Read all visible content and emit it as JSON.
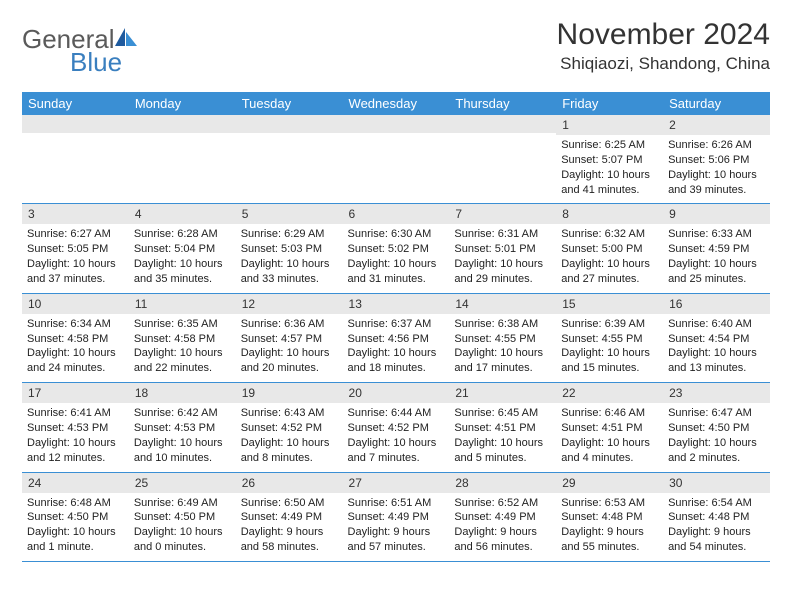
{
  "logo": {
    "text1": "General",
    "text2": "Blue"
  },
  "header": {
    "month_title": "November 2024",
    "location": "Shiqiaozi, Shandong, China"
  },
  "colors": {
    "header_bg": "#3a8fd4",
    "header_text": "#ffffff",
    "daynum_bg": "#e8e8e8",
    "logo_gray": "#5a5a5a",
    "logo_blue": "#3a7fbf",
    "border": "#3a8fd4"
  },
  "weekdays": [
    "Sunday",
    "Monday",
    "Tuesday",
    "Wednesday",
    "Thursday",
    "Friday",
    "Saturday"
  ],
  "weeks": [
    [
      null,
      null,
      null,
      null,
      null,
      {
        "n": "1",
        "sr": "Sunrise: 6:25 AM",
        "ss": "Sunset: 5:07 PM",
        "dl1": "Daylight: 10 hours",
        "dl2": "and 41 minutes."
      },
      {
        "n": "2",
        "sr": "Sunrise: 6:26 AM",
        "ss": "Sunset: 5:06 PM",
        "dl1": "Daylight: 10 hours",
        "dl2": "and 39 minutes."
      }
    ],
    [
      {
        "n": "3",
        "sr": "Sunrise: 6:27 AM",
        "ss": "Sunset: 5:05 PM",
        "dl1": "Daylight: 10 hours",
        "dl2": "and 37 minutes."
      },
      {
        "n": "4",
        "sr": "Sunrise: 6:28 AM",
        "ss": "Sunset: 5:04 PM",
        "dl1": "Daylight: 10 hours",
        "dl2": "and 35 minutes."
      },
      {
        "n": "5",
        "sr": "Sunrise: 6:29 AM",
        "ss": "Sunset: 5:03 PM",
        "dl1": "Daylight: 10 hours",
        "dl2": "and 33 minutes."
      },
      {
        "n": "6",
        "sr": "Sunrise: 6:30 AM",
        "ss": "Sunset: 5:02 PM",
        "dl1": "Daylight: 10 hours",
        "dl2": "and 31 minutes."
      },
      {
        "n": "7",
        "sr": "Sunrise: 6:31 AM",
        "ss": "Sunset: 5:01 PM",
        "dl1": "Daylight: 10 hours",
        "dl2": "and 29 minutes."
      },
      {
        "n": "8",
        "sr": "Sunrise: 6:32 AM",
        "ss": "Sunset: 5:00 PM",
        "dl1": "Daylight: 10 hours",
        "dl2": "and 27 minutes."
      },
      {
        "n": "9",
        "sr": "Sunrise: 6:33 AM",
        "ss": "Sunset: 4:59 PM",
        "dl1": "Daylight: 10 hours",
        "dl2": "and 25 minutes."
      }
    ],
    [
      {
        "n": "10",
        "sr": "Sunrise: 6:34 AM",
        "ss": "Sunset: 4:58 PM",
        "dl1": "Daylight: 10 hours",
        "dl2": "and 24 minutes."
      },
      {
        "n": "11",
        "sr": "Sunrise: 6:35 AM",
        "ss": "Sunset: 4:58 PM",
        "dl1": "Daylight: 10 hours",
        "dl2": "and 22 minutes."
      },
      {
        "n": "12",
        "sr": "Sunrise: 6:36 AM",
        "ss": "Sunset: 4:57 PM",
        "dl1": "Daylight: 10 hours",
        "dl2": "and 20 minutes."
      },
      {
        "n": "13",
        "sr": "Sunrise: 6:37 AM",
        "ss": "Sunset: 4:56 PM",
        "dl1": "Daylight: 10 hours",
        "dl2": "and 18 minutes."
      },
      {
        "n": "14",
        "sr": "Sunrise: 6:38 AM",
        "ss": "Sunset: 4:55 PM",
        "dl1": "Daylight: 10 hours",
        "dl2": "and 17 minutes."
      },
      {
        "n": "15",
        "sr": "Sunrise: 6:39 AM",
        "ss": "Sunset: 4:55 PM",
        "dl1": "Daylight: 10 hours",
        "dl2": "and 15 minutes."
      },
      {
        "n": "16",
        "sr": "Sunrise: 6:40 AM",
        "ss": "Sunset: 4:54 PM",
        "dl1": "Daylight: 10 hours",
        "dl2": "and 13 minutes."
      }
    ],
    [
      {
        "n": "17",
        "sr": "Sunrise: 6:41 AM",
        "ss": "Sunset: 4:53 PM",
        "dl1": "Daylight: 10 hours",
        "dl2": "and 12 minutes."
      },
      {
        "n": "18",
        "sr": "Sunrise: 6:42 AM",
        "ss": "Sunset: 4:53 PM",
        "dl1": "Daylight: 10 hours",
        "dl2": "and 10 minutes."
      },
      {
        "n": "19",
        "sr": "Sunrise: 6:43 AM",
        "ss": "Sunset: 4:52 PM",
        "dl1": "Daylight: 10 hours",
        "dl2": "and 8 minutes."
      },
      {
        "n": "20",
        "sr": "Sunrise: 6:44 AM",
        "ss": "Sunset: 4:52 PM",
        "dl1": "Daylight: 10 hours",
        "dl2": "and 7 minutes."
      },
      {
        "n": "21",
        "sr": "Sunrise: 6:45 AM",
        "ss": "Sunset: 4:51 PM",
        "dl1": "Daylight: 10 hours",
        "dl2": "and 5 minutes."
      },
      {
        "n": "22",
        "sr": "Sunrise: 6:46 AM",
        "ss": "Sunset: 4:51 PM",
        "dl1": "Daylight: 10 hours",
        "dl2": "and 4 minutes."
      },
      {
        "n": "23",
        "sr": "Sunrise: 6:47 AM",
        "ss": "Sunset: 4:50 PM",
        "dl1": "Daylight: 10 hours",
        "dl2": "and 2 minutes."
      }
    ],
    [
      {
        "n": "24",
        "sr": "Sunrise: 6:48 AM",
        "ss": "Sunset: 4:50 PM",
        "dl1": "Daylight: 10 hours",
        "dl2": "and 1 minute."
      },
      {
        "n": "25",
        "sr": "Sunrise: 6:49 AM",
        "ss": "Sunset: 4:50 PM",
        "dl1": "Daylight: 10 hours",
        "dl2": "and 0 minutes."
      },
      {
        "n": "26",
        "sr": "Sunrise: 6:50 AM",
        "ss": "Sunset: 4:49 PM",
        "dl1": "Daylight: 9 hours",
        "dl2": "and 58 minutes."
      },
      {
        "n": "27",
        "sr": "Sunrise: 6:51 AM",
        "ss": "Sunset: 4:49 PM",
        "dl1": "Daylight: 9 hours",
        "dl2": "and 57 minutes."
      },
      {
        "n": "28",
        "sr": "Sunrise: 6:52 AM",
        "ss": "Sunset: 4:49 PM",
        "dl1": "Daylight: 9 hours",
        "dl2": "and 56 minutes."
      },
      {
        "n": "29",
        "sr": "Sunrise: 6:53 AM",
        "ss": "Sunset: 4:48 PM",
        "dl1": "Daylight: 9 hours",
        "dl2": "and 55 minutes."
      },
      {
        "n": "30",
        "sr": "Sunrise: 6:54 AM",
        "ss": "Sunset: 4:48 PM",
        "dl1": "Daylight: 9 hours",
        "dl2": "and 54 minutes."
      }
    ]
  ]
}
